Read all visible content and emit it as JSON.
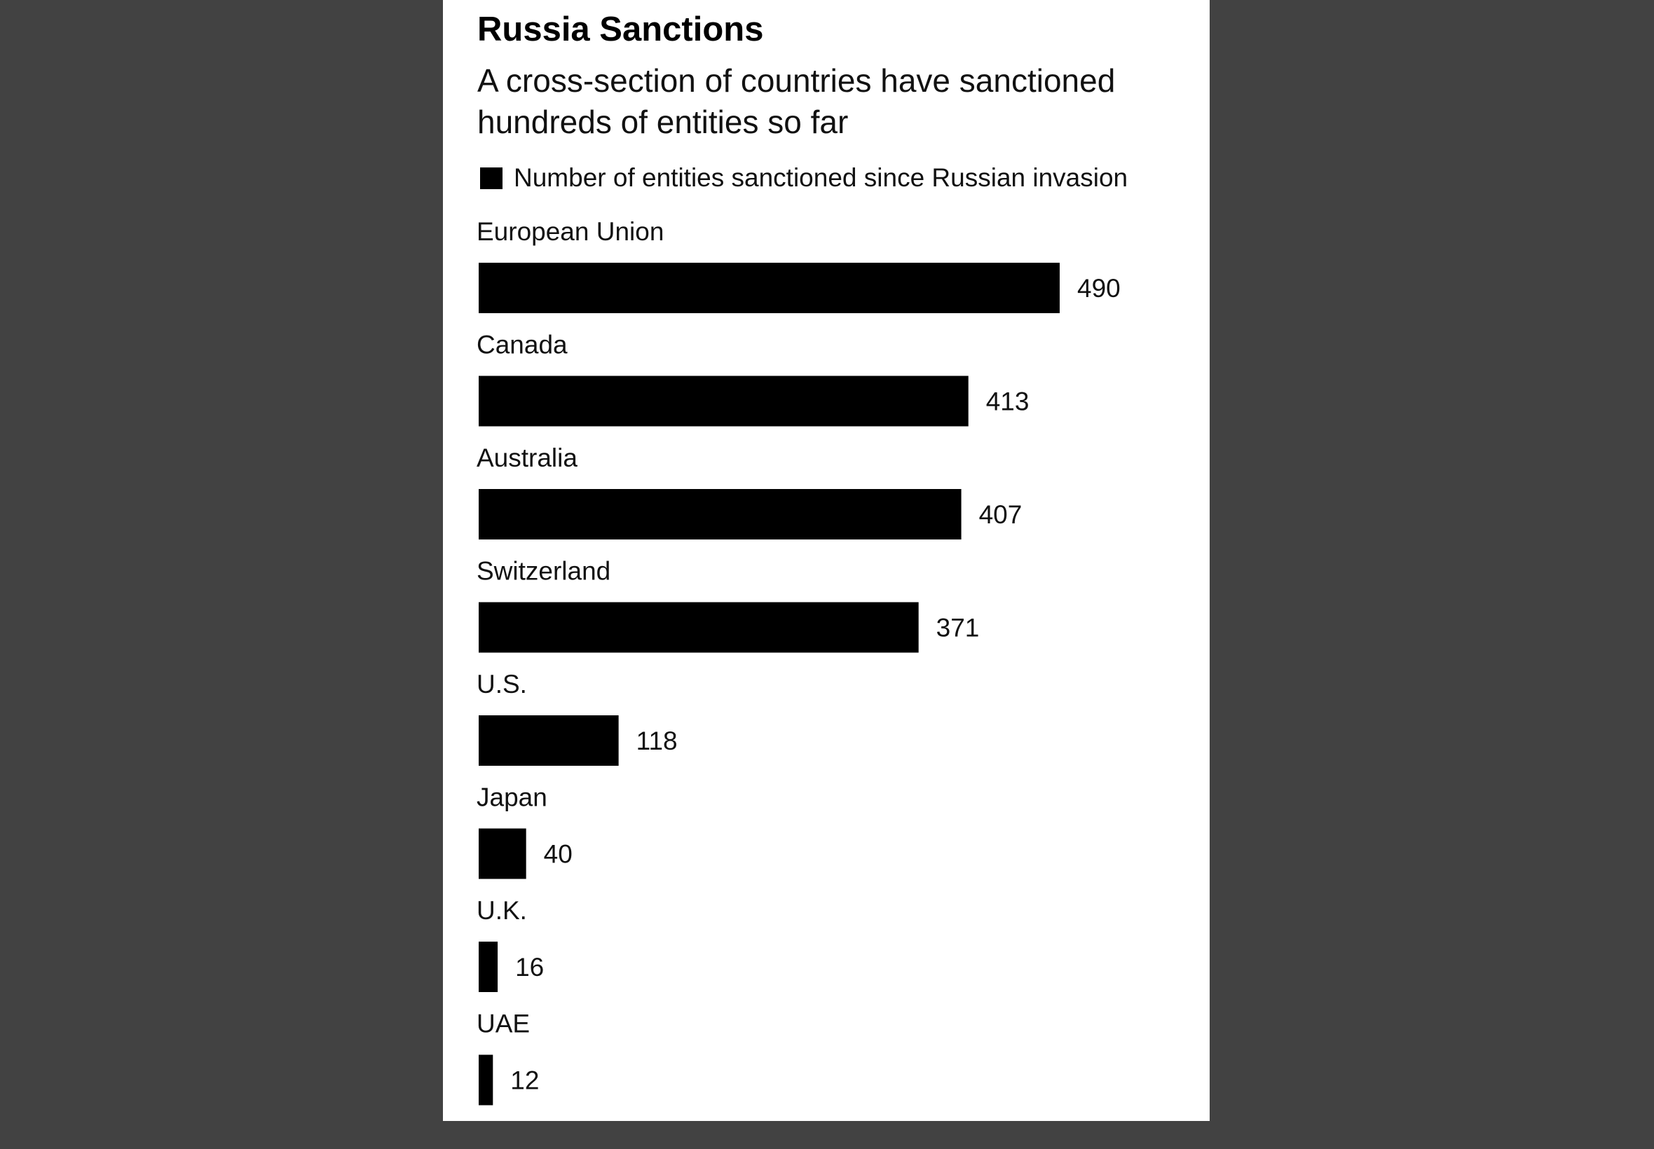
{
  "colors": {
    "background": "#424242",
    "card": "#ffffff",
    "bar": "#000000",
    "text": "#111111"
  },
  "chart_data": {
    "type": "bar",
    "orientation": "horizontal",
    "title": "Russia Sanctions",
    "subtitle": "A cross-section of countries have sanctioned hundreds of entities so far",
    "legend": [
      "Number of entities sanctioned since Russian invasion"
    ],
    "legend_position": "top-left",
    "categories": [
      "European Union",
      "Canada",
      "Australia",
      "Switzerland",
      "U.S.",
      "Japan",
      "U.K.",
      "UAE"
    ],
    "values": [
      490,
      413,
      407,
      371,
      118,
      40,
      16,
      12
    ],
    "xlim": [
      0,
      490
    ],
    "grid": false
  }
}
